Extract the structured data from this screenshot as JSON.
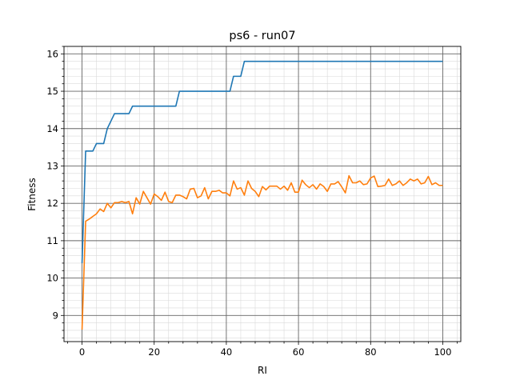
{
  "chart_data": {
    "type": "line",
    "title": "ps6 - run07",
    "xlabel": "RI",
    "ylabel": "Fitness",
    "xlim": [
      -5,
      105
    ],
    "ylim": [
      8.3,
      16.2
    ],
    "grid": true,
    "minor_grid": true,
    "x_ticks": [
      0,
      20,
      40,
      60,
      80,
      100
    ],
    "x_minor_ticks": [
      -4,
      4,
      8,
      12,
      16,
      24,
      28,
      32,
      36,
      44,
      48,
      52,
      56,
      64,
      68,
      72,
      76,
      84,
      88,
      92,
      96,
      104
    ],
    "y_ticks": [
      9,
      10,
      11,
      12,
      13,
      14,
      15,
      16
    ],
    "y_minor_ticks": [
      8.4,
      8.6,
      8.8,
      9.2,
      9.4,
      9.6,
      9.8,
      10.2,
      10.4,
      10.6,
      10.8,
      11.2,
      11.4,
      11.6,
      11.8,
      12.2,
      12.4,
      12.6,
      12.8,
      13.2,
      13.4,
      13.6,
      13.8,
      14.2,
      14.4,
      14.6,
      14.8,
      15.2,
      15.4,
      15.6,
      15.8,
      16.2
    ],
    "series": [
      {
        "color": "#1f77b4",
        "x": [
          0,
          1,
          2,
          3,
          4,
          5,
          6,
          7,
          8,
          9,
          10,
          11,
          12,
          13,
          14,
          15,
          16,
          17,
          18,
          19,
          20,
          21,
          22,
          23,
          24,
          25,
          26,
          27,
          28,
          29,
          30,
          31,
          32,
          33,
          34,
          35,
          36,
          37,
          38,
          39,
          40,
          41,
          42,
          43,
          44,
          45,
          46,
          47,
          48,
          49,
          50,
          51,
          52,
          53,
          54,
          55,
          56,
          57,
          58,
          59,
          60,
          61,
          62,
          63,
          64,
          65,
          66,
          67,
          68,
          69,
          70,
          71,
          72,
          73,
          74,
          75,
          76,
          77,
          78,
          79,
          80,
          81,
          82,
          83,
          84,
          85,
          86,
          87,
          88,
          89,
          90,
          91,
          92,
          93,
          94,
          95,
          96,
          97,
          98,
          99,
          100
        ],
        "y": [
          10.4,
          13.4,
          13.4,
          13.4,
          13.6,
          13.6,
          13.6,
          14.0,
          14.2,
          14.4,
          14.4,
          14.4,
          14.4,
          14.4,
          14.6,
          14.6,
          14.6,
          14.6,
          14.6,
          14.6,
          14.6,
          14.6,
          14.6,
          14.6,
          14.6,
          14.6,
          14.6,
          15.0,
          15.0,
          15.0,
          15.0,
          15.0,
          15.0,
          15.0,
          15.0,
          15.0,
          15.0,
          15.0,
          15.0,
          15.0,
          15.0,
          15.0,
          15.4,
          15.4,
          15.4,
          15.8,
          15.8,
          15.8,
          15.8,
          15.8,
          15.8,
          15.8,
          15.8,
          15.8,
          15.8,
          15.8,
          15.8,
          15.8,
          15.8,
          15.8,
          15.8,
          15.8,
          15.8,
          15.8,
          15.8,
          15.8,
          15.8,
          15.8,
          15.8,
          15.8,
          15.8,
          15.8,
          15.8,
          15.8,
          15.8,
          15.8,
          15.8,
          15.8,
          15.8,
          15.8,
          15.8,
          15.8,
          15.8,
          15.8,
          15.8,
          15.8,
          15.8,
          15.8,
          15.8,
          15.8,
          15.8,
          15.8,
          15.8,
          15.8,
          15.8,
          15.8,
          15.8,
          15.8,
          15.8,
          15.8,
          15.8
        ]
      },
      {
        "color": "#ff7f0e",
        "x": [
          0,
          1,
          2,
          3,
          4,
          5,
          6,
          7,
          8,
          9,
          10,
          11,
          12,
          13,
          14,
          15,
          16,
          17,
          18,
          19,
          20,
          21,
          22,
          23,
          24,
          25,
          26,
          27,
          28,
          29,
          30,
          31,
          32,
          33,
          34,
          35,
          36,
          37,
          38,
          39,
          40,
          41,
          42,
          43,
          44,
          45,
          46,
          47,
          48,
          49,
          50,
          51,
          52,
          53,
          54,
          55,
          56,
          57,
          58,
          59,
          60,
          61,
          62,
          63,
          64,
          65,
          66,
          67,
          68,
          69,
          70,
          71,
          72,
          73,
          74,
          75,
          76,
          77,
          78,
          79,
          80,
          81,
          82,
          83,
          84,
          85,
          86,
          87,
          88,
          89,
          90,
          91,
          92,
          93,
          94,
          95,
          96,
          97,
          98,
          99,
          100
        ],
        "y": [
          8.62,
          11.52,
          11.58,
          11.65,
          11.72,
          11.85,
          11.78,
          12.0,
          11.88,
          12.02,
          12.02,
          12.05,
          12.02,
          12.05,
          11.72,
          12.15,
          11.98,
          12.32,
          12.15,
          11.98,
          12.25,
          12.18,
          12.08,
          12.3,
          12.05,
          12.02,
          12.22,
          12.22,
          12.18,
          12.12,
          12.38,
          12.4,
          12.15,
          12.2,
          12.42,
          12.12,
          12.32,
          12.32,
          12.35,
          12.28,
          12.28,
          12.2,
          12.6,
          12.38,
          12.42,
          12.22,
          12.6,
          12.4,
          12.32,
          12.18,
          12.45,
          12.36,
          12.46,
          12.46,
          12.46,
          12.38,
          12.46,
          12.35,
          12.55,
          12.3,
          12.3,
          12.62,
          12.5,
          12.42,
          12.5,
          12.38,
          12.52,
          12.45,
          12.32,
          12.52,
          12.52,
          12.58,
          12.44,
          12.28,
          12.74,
          12.55,
          12.55,
          12.6,
          12.5,
          12.52,
          12.68,
          12.73,
          12.45,
          12.46,
          12.48,
          12.65,
          12.48,
          12.52,
          12.6,
          12.48,
          12.55,
          12.65,
          12.6,
          12.65,
          12.52,
          12.55,
          12.72,
          12.5,
          12.55,
          12.48,
          12.48
        ]
      }
    ]
  }
}
